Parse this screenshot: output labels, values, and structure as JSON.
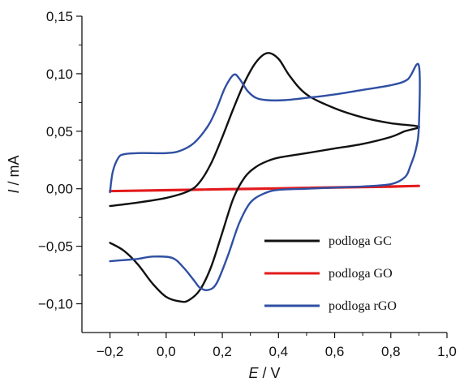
{
  "chart_data": {
    "type": "line",
    "title": "",
    "xlabel": "E / V",
    "ylabel": "I / mA",
    "xlabel_var": "E",
    "xlabel_unit": "V",
    "ylabel_var": "I",
    "ylabel_unit": "mA",
    "xlim": [
      -0.3,
      1.0
    ],
    "ylim": [
      -0.125,
      0.15
    ],
    "x_ticks": [
      -0.2,
      0.0,
      0.2,
      0.4,
      0.6,
      0.8,
      1.0
    ],
    "x_tick_labels": [
      "−0,2",
      "0,0",
      "0,2",
      "0,4",
      "0,6",
      "0,8",
      "1,0"
    ],
    "y_ticks": [
      -0.1,
      -0.05,
      0.0,
      0.05,
      0.1,
      0.15
    ],
    "y_tick_labels": [
      "−0,10",
      "−0,05",
      "0,00",
      "0,05",
      "0,10",
      "0,15"
    ],
    "grid": false,
    "legend_position": "bottom-right",
    "series": [
      {
        "name": "podloga GC",
        "color": "#111111",
        "x": [
          -0.2,
          -0.1,
          0.0,
          0.08,
          0.12,
          0.16,
          0.2,
          0.24,
          0.28,
          0.32,
          0.36,
          0.4,
          0.44,
          0.5,
          0.6,
          0.7,
          0.8,
          0.9,
          0.85,
          0.8,
          0.7,
          0.6,
          0.5,
          0.4,
          0.36,
          0.32,
          0.28,
          0.24,
          0.2,
          0.16,
          0.12,
          0.08,
          0.05,
          0.0,
          -0.05,
          -0.1,
          -0.15,
          -0.2
        ],
        "y": [
          -0.015,
          -0.012,
          -0.008,
          -0.002,
          0.006,
          0.022,
          0.045,
          0.07,
          0.093,
          0.11,
          0.118,
          0.113,
          0.098,
          0.082,
          0.07,
          0.062,
          0.057,
          0.054,
          0.05,
          0.045,
          0.039,
          0.035,
          0.031,
          0.027,
          0.024,
          0.019,
          0.01,
          -0.008,
          -0.038,
          -0.068,
          -0.088,
          -0.097,
          -0.098,
          -0.094,
          -0.082,
          -0.066,
          -0.054,
          -0.047
        ]
      },
      {
        "name": "podloga GO",
        "color": "#e31a1c",
        "x": [
          -0.2,
          0.0,
          0.2,
          0.4,
          0.6,
          0.8,
          0.9,
          0.8,
          0.6,
          0.4,
          0.2,
          0.0,
          -0.2
        ],
        "y": [
          -0.002,
          -0.0013,
          -0.0005,
          0.0002,
          0.001,
          0.0018,
          0.0025,
          0.002,
          0.0012,
          0.0004,
          -0.0004,
          -0.0012,
          -0.002
        ]
      },
      {
        "name": "podloga rGO",
        "color": "#2f4fa3",
        "x": [
          -0.2,
          -0.19,
          -0.17,
          -0.15,
          -0.1,
          0.0,
          0.05,
          0.1,
          0.15,
          0.18,
          0.21,
          0.24,
          0.26,
          0.29,
          0.32,
          0.36,
          0.42,
          0.5,
          0.6,
          0.7,
          0.8,
          0.86,
          0.9,
          0.9,
          0.89,
          0.87,
          0.85,
          0.8,
          0.7,
          0.6,
          0.5,
          0.4,
          0.35,
          0.3,
          0.26,
          0.22,
          0.18,
          0.15,
          0.12,
          0.1,
          0.06,
          0.02,
          -0.05,
          -0.1,
          -0.15,
          -0.2
        ],
        "y": [
          -0.003,
          0.015,
          0.027,
          0.03,
          0.031,
          0.031,
          0.033,
          0.04,
          0.055,
          0.07,
          0.088,
          0.099,
          0.096,
          0.085,
          0.079,
          0.077,
          0.077,
          0.079,
          0.082,
          0.086,
          0.09,
          0.095,
          0.107,
          0.055,
          0.035,
          0.02,
          0.01,
          0.004,
          0.002,
          0.001,
          0.0,
          -0.001,
          -0.004,
          -0.012,
          -0.03,
          -0.058,
          -0.082,
          -0.088,
          -0.086,
          -0.08,
          -0.068,
          -0.06,
          -0.059,
          -0.061,
          -0.062,
          -0.063
        ]
      }
    ]
  }
}
